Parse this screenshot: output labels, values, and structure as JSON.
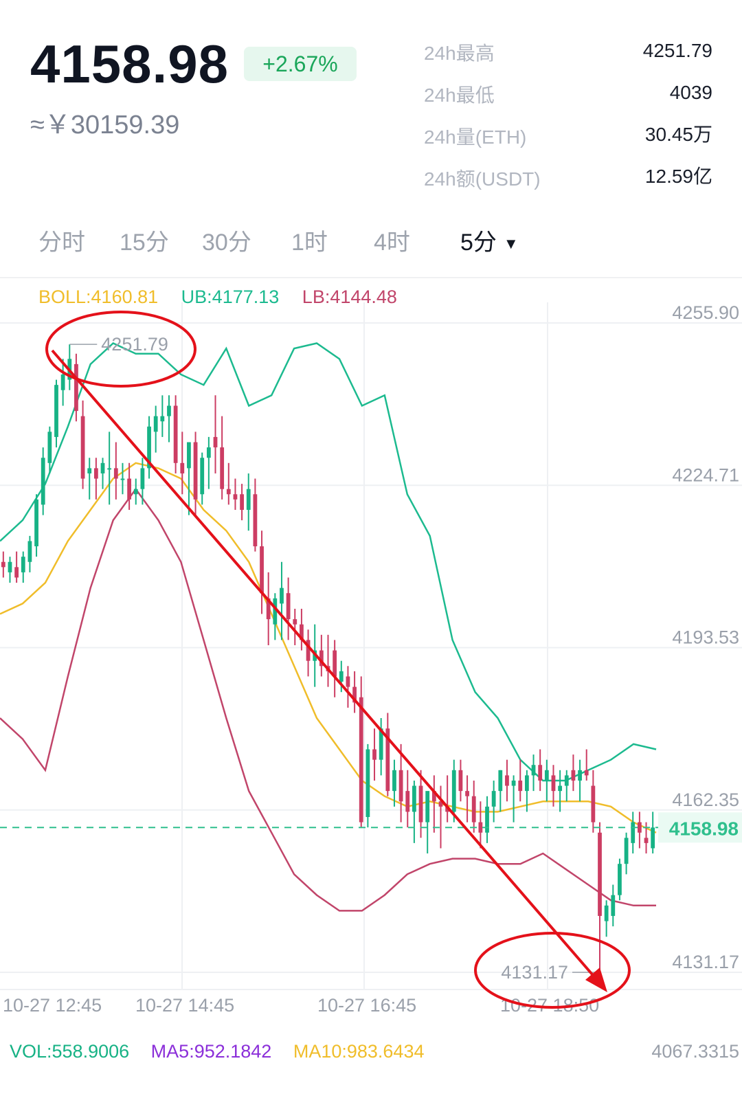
{
  "header": {
    "price": "4158.98",
    "change": "+2.67%",
    "cny_approx": "≈￥30159.39",
    "stats": [
      {
        "label": "24h最高",
        "value": "4251.79"
      },
      {
        "label": "24h最低",
        "value": "4039"
      },
      {
        "label": "24h量(ETH)",
        "value": "30.45万"
      },
      {
        "label": "24h额(USDT)",
        "value": "12.59亿"
      }
    ]
  },
  "tabs": [
    {
      "label": "分时"
    },
    {
      "label": "15分"
    },
    {
      "label": "30分"
    },
    {
      "label": "1时"
    },
    {
      "label": "4时"
    },
    {
      "label": "5分",
      "active": true
    }
  ],
  "indicators": {
    "boll": "BOLL:4160.81",
    "ub": "UB:4177.13",
    "lb": "LB:4144.48"
  },
  "volume": {
    "vol": "VOL:558.9006",
    "ma5": "MA5:952.1842",
    "ma10": "MA10:983.6434",
    "axis_max": "4067.3315"
  },
  "colors": {
    "up": "#17b285",
    "down": "#cc3d63",
    "boll_mid": "#f0bd2a",
    "boll_upper": "#1cba8f",
    "boll_lower": "#c1456a",
    "annotation": "#e4111a",
    "last_price_line": "#2fbf8d"
  },
  "chart_data": {
    "type": "candlestick",
    "y_axis_labels": [
      "4255.90",
      "4224.71",
      "4193.53",
      "4162.35",
      "4131.17"
    ],
    "x_axis_labels": [
      "10-27 12:45",
      "10-27 14:45",
      "10-27 16:45",
      "10-27 18:50"
    ],
    "ylim": [
      4131.17,
      4255.9
    ],
    "last_price": "4158.98",
    "high_marker": "4251.79",
    "low_marker": "4131.17",
    "candles_ohlc": [
      [
        4210,
        4212,
        4207,
        4209
      ],
      [
        4208,
        4211,
        4206,
        4210
      ],
      [
        4209,
        4212,
        4206,
        4207
      ],
      [
        4208,
        4212,
        4206,
        4211
      ],
      [
        4210,
        4215,
        4208,
        4214
      ],
      [
        4213,
        4223,
        4211,
        4222
      ],
      [
        4221,
        4232,
        4219,
        4230
      ],
      [
        4229,
        4236,
        4227,
        4235
      ],
      [
        4234,
        4245,
        4232,
        4244
      ],
      [
        4243,
        4249,
        4240,
        4246
      ],
      [
        4245,
        4251.79,
        4243,
        4249
      ],
      [
        4248,
        4250,
        4237,
        4239
      ],
      [
        4238,
        4241,
        4224,
        4226
      ],
      [
        4227,
        4230,
        4222,
        4228
      ],
      [
        4228,
        4230,
        4222,
        4226
      ],
      [
        4227,
        4230,
        4224,
        4229
      ],
      [
        4228,
        4235,
        4221,
        4228
      ],
      [
        4228,
        4233,
        4222,
        4226
      ],
      [
        4226,
        4229,
        4223,
        4226
      ],
      [
        4226,
        4229,
        4220,
        4222
      ],
      [
        4223,
        4226,
        4221,
        4224
      ],
      [
        4224,
        4230,
        4221,
        4228
      ],
      [
        4228,
        4238,
        4226,
        4236
      ],
      [
        4235,
        4240,
        4231,
        4238
      ],
      [
        4237,
        4242,
        4234,
        4238
      ],
      [
        4238,
        4242,
        4233,
        4240
      ],
      [
        4240,
        4242,
        4227,
        4229
      ],
      [
        4229,
        4235,
        4223,
        4227
      ],
      [
        4228,
        4232,
        4219,
        4233
      ],
      [
        4233,
        4235,
        4219,
        4222
      ],
      [
        4223,
        4231,
        4221,
        4230
      ],
      [
        4230,
        4234,
        4224,
        4232
      ],
      [
        4234,
        4242,
        4227,
        4232
      ],
      [
        4232,
        4238,
        4222,
        4224
      ],
      [
        4224,
        4229,
        4221,
        4223
      ],
      [
        4223,
        4226,
        4220,
        4222
      ],
      [
        4223,
        4225,
        4218,
        4220
      ],
      [
        4220,
        4227,
        4216,
        4224
      ],
      [
        4223,
        4226,
        4212,
        4213
      ],
      [
        4213,
        4216,
        4200,
        4204
      ],
      [
        4203,
        4208,
        4194,
        4199
      ],
      [
        4198,
        4204,
        4195,
        4203
      ],
      [
        4202,
        4210,
        4195,
        4205
      ],
      [
        4204,
        4207,
        4195,
        4199
      ],
      [
        4199,
        4201,
        4194,
        4198
      ],
      [
        4198,
        4201,
        4193,
        4195
      ],
      [
        4195,
        4197,
        4188,
        4191
      ],
      [
        4191,
        4198,
        4186,
        4193
      ],
      [
        4193,
        4196,
        4188,
        4190
      ],
      [
        4190,
        4196,
        4186,
        4189
      ],
      [
        4193,
        4195,
        4184,
        4188
      ],
      [
        4187,
        4191,
        4185,
        4189
      ],
      [
        4188,
        4190,
        4182,
        4186
      ],
      [
        4186,
        4189,
        4181,
        4183
      ],
      [
        4184,
        4188,
        4159,
        4160
      ],
      [
        4161,
        4175,
        4159,
        4174
      ],
      [
        4174,
        4178,
        4168,
        4172
      ],
      [
        4172,
        4180,
        4169,
        4178
      ],
      [
        4178,
        4181,
        4165,
        4166
      ],
      [
        4166,
        4172,
        4163,
        4170
      ],
      [
        4170,
        4175,
        4160,
        4164
      ],
      [
        4166,
        4170,
        4159,
        4162
      ],
      [
        4162,
        4168,
        4156,
        4167
      ],
      [
        4167,
        4170,
        4157,
        4160
      ],
      [
        4160,
        4165,
        4154,
        4166
      ],
      [
        4166,
        4169,
        4158,
        4164
      ],
      [
        4164,
        4167,
        4155,
        4163
      ],
      [
        4163,
        4169,
        4160,
        4162
      ],
      [
        4162,
        4172,
        4160,
        4170
      ],
      [
        4170,
        4172,
        4164,
        4166
      ],
      [
        4166,
        4169,
        4160,
        4165
      ],
      [
        4165,
        4168,
        4158,
        4160
      ],
      [
        4160,
        4164,
        4155,
        4158
      ],
      [
        4158,
        4165,
        4156,
        4163
      ],
      [
        4163,
        4168,
        4160,
        4166
      ],
      [
        4166,
        4170,
        4162,
        4170
      ],
      [
        4169,
        4172,
        4164,
        4167
      ],
      [
        4167,
        4169,
        4160,
        4168
      ],
      [
        4168,
        4172,
        4164,
        4166
      ],
      [
        4166,
        4170,
        4162,
        4169
      ],
      [
        4169,
        4173,
        4166,
        4171
      ],
      [
        4171,
        4174,
        4166,
        4168
      ],
      [
        4168,
        4172,
        4164,
        4170
      ],
      [
        4169,
        4171,
        4163,
        4166
      ],
      [
        4166,
        4170,
        4162,
        4167
      ],
      [
        4167,
        4170,
        4164,
        4169
      ],
      [
        4170,
        4173,
        4166,
        4168
      ],
      [
        4168,
        4172,
        4164,
        4170
      ],
      [
        4170,
        4174,
        4168,
        4169
      ],
      [
        4167,
        4170,
        4158,
        4160
      ],
      [
        4158,
        4160,
        4131.17,
        4142
      ],
      [
        4141,
        4145,
        4138,
        4144
      ],
      [
        4142,
        4148,
        4140,
        4146
      ],
      [
        4146,
        4153,
        4145,
        4152
      ],
      [
        4152,
        4158,
        4150,
        4157
      ],
      [
        4156,
        4162,
        4154,
        4160
      ],
      [
        4160,
        4162,
        4155,
        4158
      ],
      [
        4157,
        4160,
        4154,
        4156
      ],
      [
        4155,
        4162,
        4154,
        4158.98
      ]
    ],
    "boll_upper": [
      4214,
      4218,
      4225,
      4236,
      4248,
      4252,
      4250,
      4250,
      4246,
      4244,
      4251,
      4240,
      4242,
      4251,
      4252,
      4249,
      4240,
      4242,
      4223,
      4215,
      4195,
      4185,
      4180,
      4172,
      4168,
      4168,
      4170,
      4172,
      4175,
      4174
    ],
    "boll_mid": [
      4200,
      4202,
      4206,
      4214,
      4220,
      4226,
      4229,
      4228,
      4226,
      4220,
      4216,
      4210,
      4200,
      4190,
      4180,
      4174,
      4168,
      4165,
      4163,
      4164,
      4163,
      4162,
      4162,
      4163,
      4164,
      4164,
      4164,
      4163,
      4160,
      4158
    ],
    "boll_lower": [
      4180,
      4176,
      4170,
      4188,
      4205,
      4218,
      4224,
      4218,
      4210,
      4195,
      4180,
      4166,
      4158,
      4150,
      4146,
      4143,
      4143,
      4146,
      4150,
      4152,
      4153,
      4153,
      4152,
      4152,
      4154,
      4151,
      4148,
      4145,
      4144,
      4144
    ]
  }
}
